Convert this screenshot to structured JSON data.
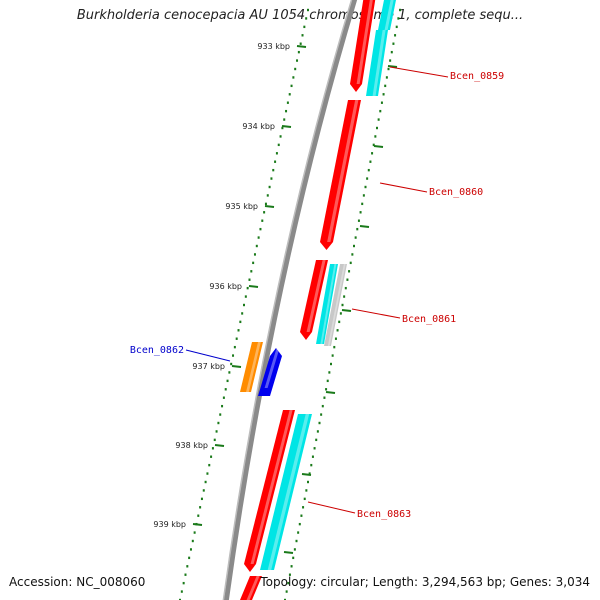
{
  "map": {
    "title": "Burkholderia cenocepacia AU 1054 chromosome 1, complete sequ...",
    "accession": "Accession: NC_008060",
    "summary": "Topology: circular; Length: 3,294,563 bp; Genes: 3,034",
    "colors": {
      "backbone": "#8a8a8a",
      "tick": "#1a7a1a",
      "forward_gene": "#ff0000",
      "cds_feature": "#00e5e5",
      "pseudo_feature": "#c8c8c8",
      "reverse_gene": "#ff8c00",
      "reverse_cds": "#0000ee",
      "label_forward": "#cc0000",
      "label_reverse": "#0000cc"
    }
  },
  "ticks": [
    {
      "label": "933 kbp"
    },
    {
      "label": "934 kbp"
    },
    {
      "label": "935 kbp"
    },
    {
      "label": "936 kbp"
    },
    {
      "label": "937 kbp"
    },
    {
      "label": "938 kbp"
    },
    {
      "label": "939 kbp"
    }
  ],
  "genes": [
    {
      "label": "Bcen_0859",
      "strand": "forward"
    },
    {
      "label": "Bcen_0860",
      "strand": "forward"
    },
    {
      "label": "Bcen_0861",
      "strand": "forward"
    },
    {
      "label": "Bcen_0862",
      "strand": "reverse"
    },
    {
      "label": "Bcen_0863",
      "strand": "forward"
    }
  ]
}
